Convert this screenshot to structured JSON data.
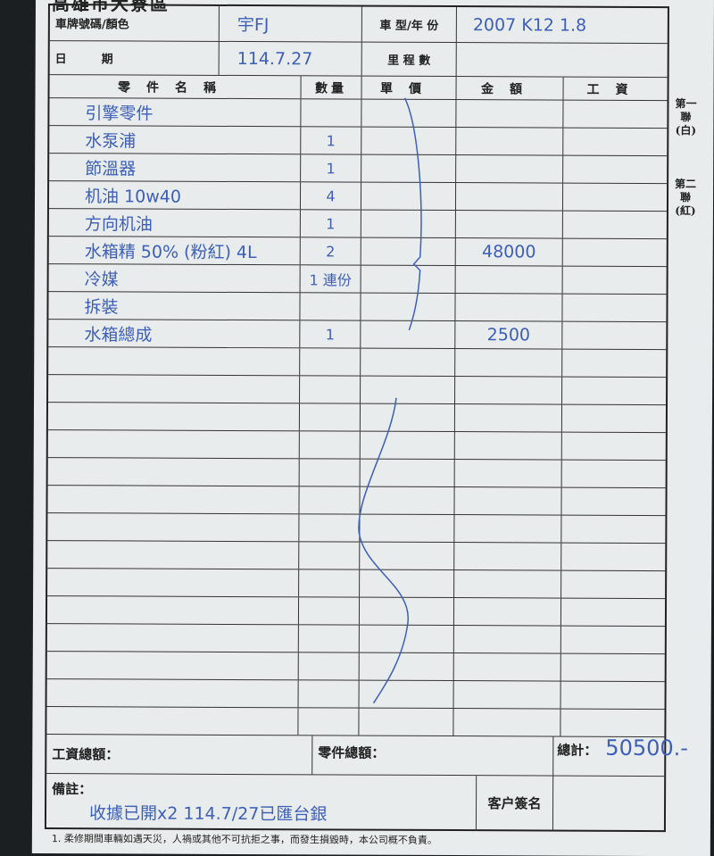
{
  "form": {
    "title": "高雄市大寮區",
    "plate_color_label": "車牌號碼/顏色",
    "plate_color_value": "宇FJ",
    "date_label": "日　　　期",
    "date_value": "114.7.27",
    "model_year_label": "車 型/年 份",
    "model_year_value": "2007 K12 1.8",
    "mileage_label": "里 程 數",
    "mileage_value": ""
  },
  "columns": [
    "零件名稱",
    "數量",
    "單價",
    "金額",
    "工資"
  ],
  "items": [
    {
      "name": "引擎零件",
      "qty": "",
      "amount": ""
    },
    {
      "name": "水泵浦",
      "qty": "1",
      "amount": ""
    },
    {
      "name": "節溫器",
      "qty": "1",
      "amount": ""
    },
    {
      "name": "机油 10w40",
      "qty": "4",
      "amount": ""
    },
    {
      "name": "方向机油",
      "qty": "1",
      "amount": ""
    },
    {
      "name": "水箱精 50% (粉紅) 4L",
      "qty": "2",
      "amount": "48000"
    },
    {
      "name": "冷媒",
      "qty": "1 連份",
      "amount": ""
    },
    {
      "name": "拆裝",
      "qty": "",
      "amount": ""
    },
    {
      "name": "水箱總成",
      "qty": "1",
      "amount": "2500"
    }
  ],
  "side_labels": {
    "copy1": "第一聯(白)",
    "copy2": "第二聯(紅)"
  },
  "totals": {
    "labor_label": "工資總額：",
    "parts_label": "零件總額：",
    "grand_label": "總計：",
    "grand_value": "50500.-"
  },
  "remarks": {
    "label": "備註：",
    "value": "收據已開x2 114.7/27已匯台銀",
    "signature_label": "客户簽名"
  },
  "footer_note": "1. 柔修期間車輛如遇天災，人禍或其他不可抗拒之事，而發生損毀時，本公司概不負責。",
  "colors": {
    "ink": "#3d5fb8",
    "paper": "#e9ecec",
    "lines": "#333333"
  }
}
